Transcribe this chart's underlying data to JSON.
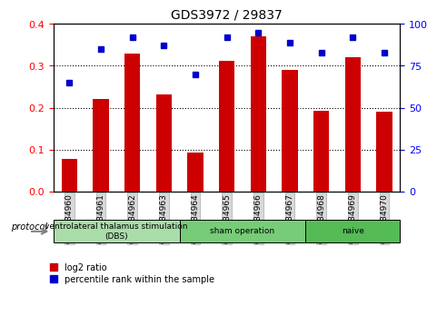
{
  "title": "GDS3972 / 29837",
  "categories": [
    "GSM634960",
    "GSM634961",
    "GSM634962",
    "GSM634963",
    "GSM634964",
    "GSM634965",
    "GSM634966",
    "GSM634967",
    "GSM634968",
    "GSM634969",
    "GSM634970"
  ],
  "bar_values": [
    0.077,
    0.22,
    0.33,
    0.232,
    0.093,
    0.311,
    0.37,
    0.29,
    0.192,
    0.32,
    0.19
  ],
  "blue_values": [
    65,
    85,
    92,
    87,
    70,
    92,
    95,
    89,
    83,
    92,
    83
  ],
  "bar_color": "#CC0000",
  "blue_color": "#0000CC",
  "ylim_left": [
    0,
    0.4
  ],
  "ylim_right": [
    0,
    100
  ],
  "yticks_left": [
    0,
    0.1,
    0.2,
    0.3,
    0.4
  ],
  "yticks_right": [
    0,
    25,
    50,
    75,
    100
  ],
  "groups": [
    {
      "label": "ventrolateral thalamus stimulation\n(DBS)",
      "start": 0,
      "end": 3,
      "color": "#90EE90"
    },
    {
      "label": "sham operation",
      "start": 4,
      "end": 7,
      "color": "#90EE90"
    },
    {
      "label": "naive",
      "start": 8,
      "end": 10,
      "color": "#55CC55"
    }
  ],
  "group_colors": [
    "#CCFFCC",
    "#90EE90",
    "#55DD55"
  ],
  "protocol_label": "protocol",
  "legend_bar_label": "log2 ratio",
  "legend_blue_label": "percentile rank within the sample",
  "bg_color": "#F0F0F0",
  "plot_bg": "#FFFFFF"
}
